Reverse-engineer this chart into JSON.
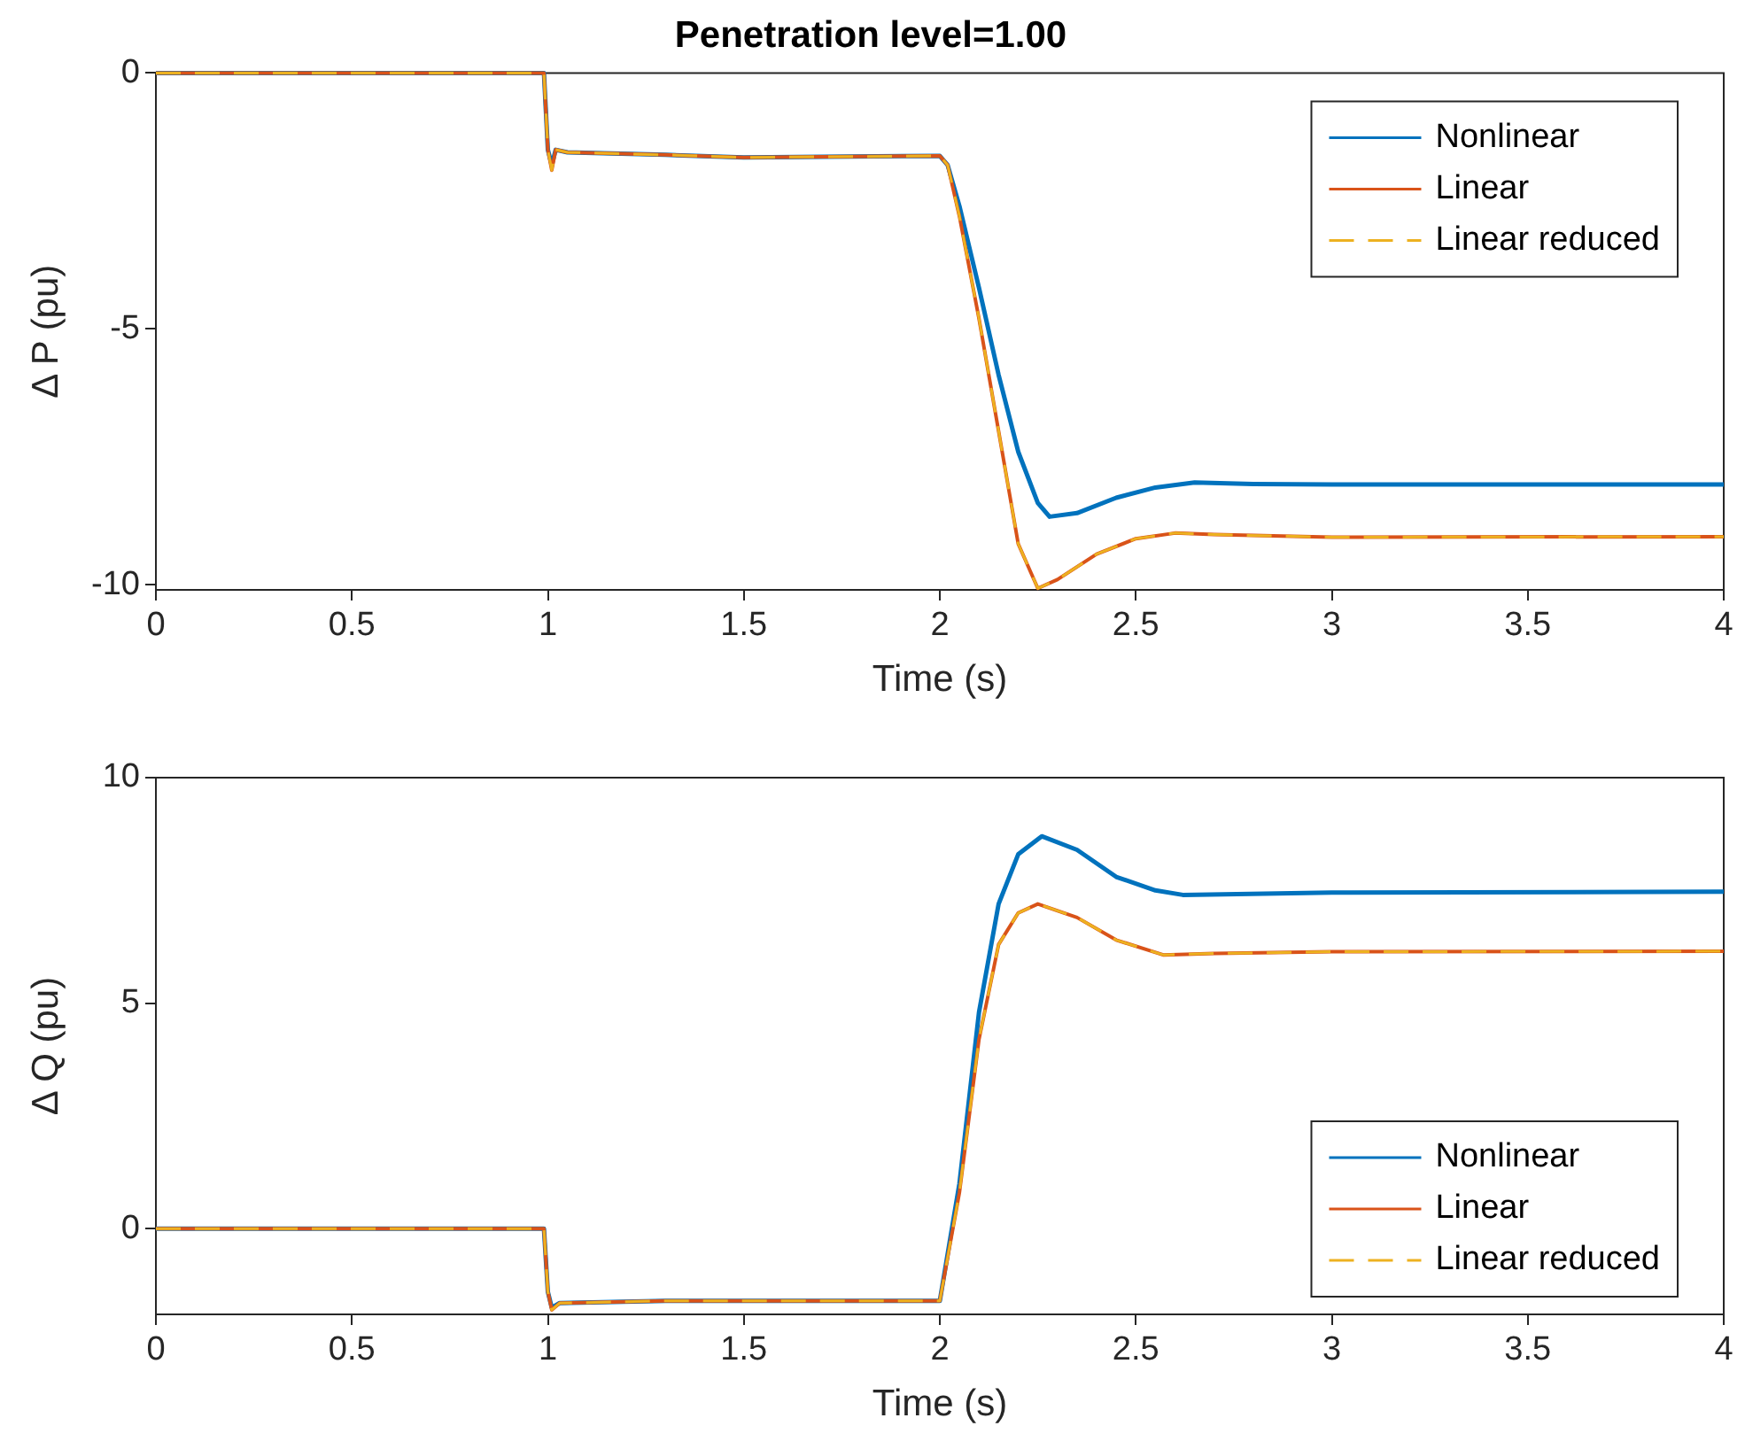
{
  "chart_data": [
    {
      "type": "line",
      "title": "Penetration level=1.00",
      "xlabel": "Time (s)",
      "ylabel": "Δ P (pu)",
      "xlim": [
        0,
        4
      ],
      "xticks": [
        0,
        0.5,
        1,
        1.5,
        2,
        2.5,
        3,
        3.5,
        4
      ],
      "ylim": [
        -10.1,
        0
      ],
      "yticks": [
        -10,
        -5,
        0
      ],
      "grid": false,
      "legend": "top right",
      "marker": "none",
      "series": [
        {
          "name": "Nonlinear",
          "color": "#0072bd",
          "line_style": "solid",
          "x": [
            0,
            0.99,
            1.0,
            1.01,
            1.02,
            1.05,
            1.3,
            1.5,
            2.0,
            2.02,
            2.05,
            2.1,
            2.15,
            2.2,
            2.25,
            2.28,
            2.35,
            2.45,
            2.55,
            2.65,
            2.8,
            3,
            4
          ],
          "values": [
            0,
            0,
            -1.5,
            -1.8,
            -1.5,
            -1.55,
            -1.6,
            -1.65,
            -1.62,
            -1.8,
            -2.6,
            -4.2,
            -5.9,
            -7.4,
            -8.4,
            -8.67,
            -8.6,
            -8.3,
            -8.1,
            -8.0,
            -8.03,
            -8.04,
            -8.04
          ]
        },
        {
          "name": "Linear",
          "color": "#d95319",
          "line_style": "solid",
          "x": [
            0,
            0.99,
            1.0,
            1.01,
            1.02,
            1.05,
            1.3,
            1.5,
            2.0,
            2.02,
            2.05,
            2.1,
            2.15,
            2.2,
            2.25,
            2.3,
            2.4,
            2.5,
            2.6,
            2.7,
            3,
            4
          ],
          "values": [
            0,
            0,
            -1.5,
            -1.9,
            -1.5,
            -1.55,
            -1.6,
            -1.65,
            -1.62,
            -1.8,
            -2.8,
            -4.8,
            -7.0,
            -9.2,
            -10.07,
            -9.9,
            -9.4,
            -9.1,
            -8.99,
            -9.02,
            -9.07,
            -9.06
          ]
        },
        {
          "name": "Linear reduced",
          "color": "#edb120",
          "line_style": "dashed",
          "x": [
            0,
            0.99,
            1.0,
            1.01,
            1.02,
            1.05,
            1.3,
            1.5,
            2.0,
            2.02,
            2.05,
            2.1,
            2.15,
            2.2,
            2.25,
            2.3,
            2.4,
            2.5,
            2.6,
            2.7,
            3,
            4
          ],
          "values": [
            0,
            0,
            -1.5,
            -1.9,
            -1.5,
            -1.55,
            -1.6,
            -1.65,
            -1.62,
            -1.8,
            -2.8,
            -4.8,
            -7.0,
            -9.2,
            -10.07,
            -9.9,
            -9.4,
            -9.1,
            -8.99,
            -9.02,
            -9.07,
            -9.06
          ]
        }
      ]
    },
    {
      "type": "line",
      "xlabel": "Time (s)",
      "ylabel": "Δ Q (pu)",
      "xlim": [
        0,
        4
      ],
      "xticks": [
        0,
        0.5,
        1,
        1.5,
        2,
        2.5,
        3,
        3.5,
        4
      ],
      "ylim": [
        -1.9,
        10
      ],
      "yticks": [
        0,
        5,
        10
      ],
      "grid": false,
      "legend": "bottom right",
      "marker": "none",
      "series": [
        {
          "name": "Nonlinear",
          "color": "#0072bd",
          "line_style": "solid",
          "x": [
            0,
            0.99,
            1.0,
            1.01,
            1.03,
            1.3,
            1.5,
            2.0,
            2.05,
            2.1,
            2.15,
            2.2,
            2.26,
            2.35,
            2.45,
            2.55,
            2.62,
            3,
            4
          ],
          "values": [
            0,
            0,
            -1.4,
            -1.75,
            -1.65,
            -1.6,
            -1.6,
            -1.6,
            1.0,
            4.8,
            7.2,
            8.3,
            8.7,
            8.4,
            7.8,
            7.5,
            7.4,
            7.45,
            7.47
          ]
        },
        {
          "name": "Linear",
          "color": "#d95319",
          "line_style": "solid",
          "x": [
            0,
            0.99,
            1.0,
            1.01,
            1.03,
            1.3,
            1.5,
            2.0,
            2.05,
            2.1,
            2.15,
            2.2,
            2.25,
            2.35,
            2.45,
            2.57,
            2.7,
            3,
            4
          ],
          "values": [
            0,
            0,
            -1.4,
            -1.8,
            -1.65,
            -1.6,
            -1.6,
            -1.6,
            0.8,
            4.2,
            6.3,
            7.0,
            7.2,
            6.9,
            6.4,
            6.07,
            6.1,
            6.14,
            6.15
          ]
        },
        {
          "name": "Linear reduced",
          "color": "#edb120",
          "line_style": "dashed",
          "x": [
            0,
            0.99,
            1.0,
            1.01,
            1.03,
            1.3,
            1.5,
            2.0,
            2.05,
            2.1,
            2.15,
            2.2,
            2.25,
            2.35,
            2.45,
            2.57,
            2.7,
            3,
            4
          ],
          "values": [
            0,
            0,
            -1.4,
            -1.8,
            -1.65,
            -1.6,
            -1.6,
            -1.6,
            0.8,
            4.2,
            6.3,
            7.0,
            7.2,
            6.9,
            6.4,
            6.07,
            6.1,
            6.14,
            6.15
          ]
        }
      ]
    }
  ]
}
